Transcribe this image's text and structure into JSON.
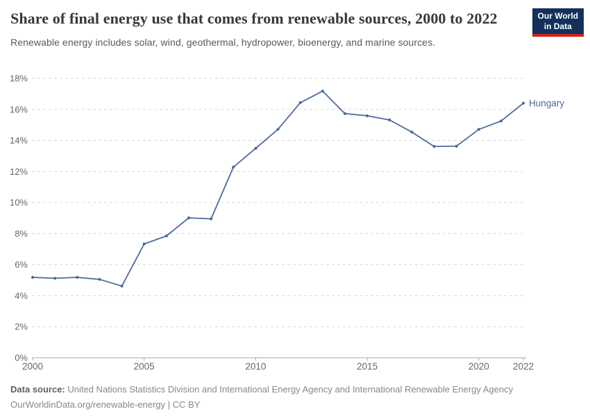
{
  "header": {
    "title": "Share of final energy use that comes from renewable sources, 2000 to 2022",
    "subtitle": "Renewable energy includes solar, wind, geothermal, hydropower, bioenergy, and marine sources.",
    "logo": {
      "line1": "Our World",
      "line2": "in Data"
    }
  },
  "colors": {
    "accent": "#4d6a9d",
    "gridline": "#d9d9d9",
    "axis": "#a5a5a5",
    "tick_label": "#666666",
    "logo_navy": "#12305a",
    "logo_red": "#cf2318"
  },
  "chart_data": {
    "type": "line",
    "title": "Share of final energy use that comes from renewable sources, 2000 to 2022",
    "subtitle": "Renewable energy includes solar, wind, geothermal, hydropower, bioenergy, and marine sources.",
    "xlabel": "",
    "ylabel": "",
    "x": [
      2000,
      2001,
      2002,
      2003,
      2004,
      2005,
      2006,
      2007,
      2008,
      2009,
      2010,
      2011,
      2012,
      2013,
      2014,
      2015,
      2016,
      2017,
      2018,
      2019,
      2020,
      2021,
      2022
    ],
    "series": [
      {
        "name": "Hungary",
        "color": "#4d6a9d",
        "values": [
          5.18,
          5.12,
          5.18,
          5.05,
          4.62,
          7.33,
          7.85,
          9.01,
          8.95,
          12.28,
          13.49,
          14.72,
          16.43,
          17.18,
          15.73,
          15.59,
          15.32,
          14.54,
          13.61,
          13.63,
          14.71,
          15.25,
          16.4
        ]
      }
    ],
    "ylim": [
      0,
      18
    ],
    "yticks": [
      0,
      2,
      4,
      6,
      8,
      10,
      12,
      14,
      16,
      18
    ],
    "ytick_labels": [
      "0%",
      "2%",
      "4%",
      "6%",
      "8%",
      "10%",
      "12%",
      "14%",
      "16%",
      "18%"
    ],
    "xticks": [
      2000,
      2005,
      2010,
      2015,
      2020,
      2022
    ],
    "xtick_labels": [
      "2000",
      "2005",
      "2010",
      "2015",
      "2020",
      "2022"
    ],
    "grid": "horizontal-dashed",
    "legend": "end-of-line-label"
  },
  "footer": {
    "source_label": "Data source:",
    "source_text": " United Nations Statistics Division and International Energy Agency and International Renewable Energy Agency",
    "link_line": "OurWorldinData.org/renewable-energy | CC BY"
  }
}
